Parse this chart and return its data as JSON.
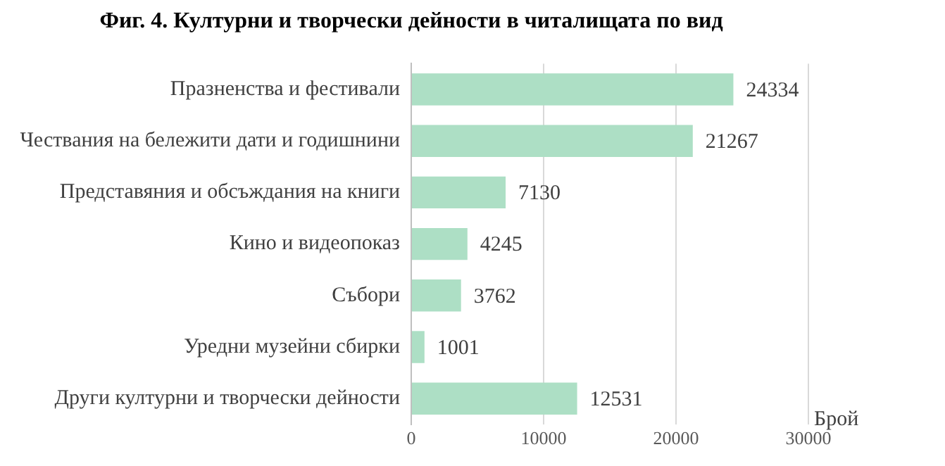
{
  "chart_data": {
    "type": "bar",
    "orientation": "horizontal",
    "title": "Фиг. 4. Културни и творчески дейности в читалищата по вид",
    "xlabel": "Брой",
    "categories": [
      "Празненства и фестивали",
      "Чествания на бележити дати и годишнини",
      "Представяния и обсъждания на книги",
      "Кино и видеопоказ",
      "Събори",
      "Уредни музейни сбирки",
      "Други културни и творчески дейности"
    ],
    "values": [
      24334,
      21267,
      7130,
      4245,
      3762,
      1001,
      12531
    ],
    "color": "#addfc5",
    "xlim": [
      0,
      30000
    ],
    "xticks": [
      0,
      10000,
      20000,
      30000
    ],
    "grid": "x",
    "data_labels": true,
    "legend": false
  }
}
